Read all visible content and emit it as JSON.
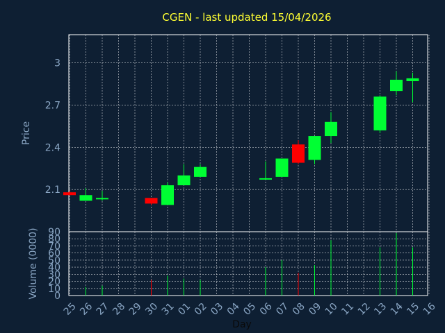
{
  "chart_data": {
    "type": "candlestick",
    "title": "CGEN - last updated 15/04/2026",
    "xlabel": "Day",
    "price_ylabel": "Price",
    "volume_ylabel": "Volume (0000)",
    "x_ticks": [
      "25",
      "26",
      "27",
      "28",
      "29",
      "30",
      "31",
      "01",
      "02",
      "03",
      "04",
      "05",
      "06",
      "07",
      "08",
      "09",
      "10",
      "11",
      "12",
      "13",
      "14",
      "15",
      "16"
    ],
    "price_ticks": [
      "2.1",
      "2.4",
      "2.7",
      "3"
    ],
    "volume_ticks": [
      "0",
      "10",
      "20",
      "30",
      "40",
      "50",
      "60",
      "70",
      "80",
      "90"
    ],
    "price_ylim": [
      1.8,
      3.2
    ],
    "volume_ylim": [
      0,
      90
    ],
    "grid": true,
    "up_color": "#00ff33",
    "down_color": "#ff0000",
    "background": "#0e1f33",
    "plot_background": "#0e1f33",
    "candles": [
      {
        "x": 0,
        "open": 2.08,
        "high": 2.09,
        "low": 2.06,
        "close": 2.06,
        "volume": 0
      },
      {
        "x": 1,
        "open": 2.02,
        "high": 2.11,
        "low": 2.02,
        "close": 2.06,
        "volume": 12
      },
      {
        "x": 2,
        "open": 2.03,
        "high": 2.09,
        "low": 2.02,
        "close": 2.04,
        "volume": 14
      },
      {
        "x": 5,
        "open": 2.04,
        "high": 2.04,
        "low": 1.99,
        "close": 2.0,
        "volume": 22
      },
      {
        "x": 6,
        "open": 1.99,
        "high": 2.15,
        "low": 1.99,
        "close": 2.13,
        "volume": 28
      },
      {
        "x": 7,
        "open": 2.13,
        "high": 2.28,
        "low": 2.13,
        "close": 2.2,
        "volume": 24
      },
      {
        "x": 8,
        "open": 2.19,
        "high": 2.28,
        "low": 2.19,
        "close": 2.26,
        "volume": 22
      },
      {
        "x": 12,
        "open": 2.18,
        "high": 2.3,
        "low": 2.17,
        "close": 2.18,
        "volume": 40
      },
      {
        "x": 13,
        "open": 2.19,
        "high": 2.32,
        "low": 2.19,
        "close": 2.32,
        "volume": 50
      },
      {
        "x": 14,
        "open": 2.42,
        "high": 2.45,
        "low": 2.28,
        "close": 2.29,
        "volume": 32
      },
      {
        "x": 15,
        "open": 2.31,
        "high": 2.48,
        "low": 2.28,
        "close": 2.48,
        "volume": 43
      },
      {
        "x": 16,
        "open": 2.48,
        "high": 2.65,
        "low": 2.43,
        "close": 2.58,
        "volume": 78
      },
      {
        "x": 19,
        "open": 2.52,
        "high": 2.77,
        "low": 2.5,
        "close": 2.76,
        "volume": 68
      },
      {
        "x": 20,
        "open": 2.8,
        "high": 2.94,
        "low": 2.77,
        "close": 2.88,
        "volume": 88
      },
      {
        "x": 21,
        "open": 2.87,
        "high": 2.93,
        "low": 2.72,
        "close": 2.89,
        "volume": 68
      }
    ]
  }
}
